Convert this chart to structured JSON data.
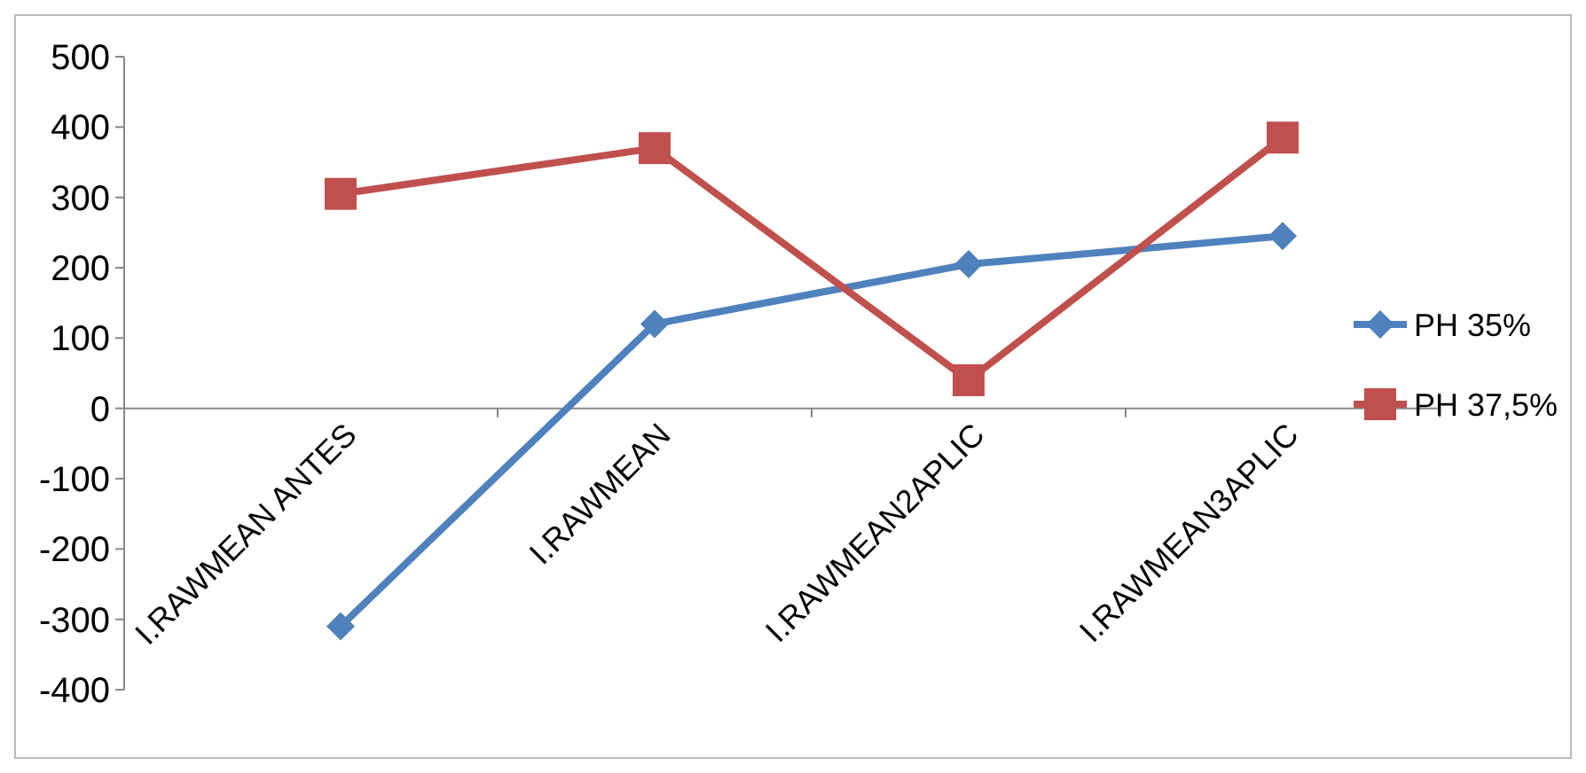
{
  "chart_data": {
    "type": "line",
    "categories": [
      "I.RAWMEAN ANTES",
      "I.RAWMEAN",
      "I.RAWMEAN2APLIC",
      "I.RAWMEAN3APLIC"
    ],
    "series": [
      {
        "name": "PH 35%",
        "color": "#4f81bd",
        "values": [
          -310,
          120,
          205,
          245
        ],
        "marker": "diamond"
      },
      {
        "name": "PH 37,5%",
        "color": "#c0504d",
        "values": [
          305,
          370,
          40,
          385
        ],
        "marker": "square"
      }
    ],
    "ylim": [
      -400,
      500
    ],
    "yticks": [
      -400,
      -300,
      -200,
      -100,
      0,
      100,
      200,
      300,
      400,
      500
    ],
    "grid": false,
    "legend": "right"
  }
}
